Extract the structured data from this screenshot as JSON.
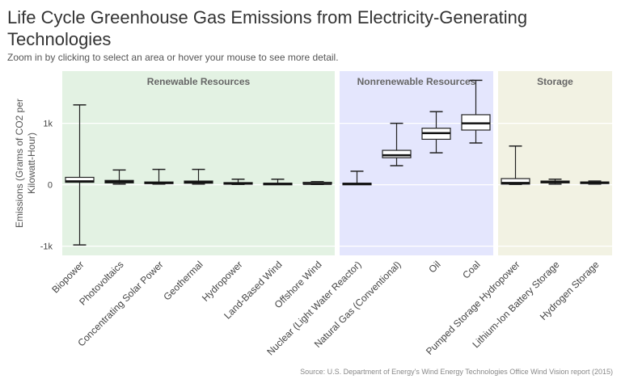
{
  "header": {
    "title": "Life Cycle Greenhouse Gas Emissions from Electricity-Generating Technologies",
    "subtitle": "Zoom in by clicking to select an area or hover your mouse to see more detail."
  },
  "source": "Source: U.S. Department of Energy's Wind Energy Technologies Office Wind Vision report (2015)",
  "chart_data": {
    "type": "box",
    "ylabel": "Emissions (Grams of CO2 per Kilowatt-Hour)",
    "xlabel": "",
    "ylim": [
      -1150,
      1850
    ],
    "yticks": [
      {
        "value": -1000,
        "label": "-1k"
      },
      {
        "value": 0,
        "label": "0"
      },
      {
        "value": 1000,
        "label": "1k"
      }
    ],
    "grid": true,
    "groups": [
      {
        "label": "Renewable Resources",
        "start": 0,
        "end": 6,
        "color": "#e3f2e3"
      },
      {
        "label": "Nonrenewable Resources",
        "start": 7,
        "end": 10,
        "color": "#e4e6fd"
      },
      {
        "label": "Storage",
        "start": 11,
        "end": 13,
        "color": "#f2f2e3"
      }
    ],
    "categories": [
      "Biopower",
      "Photovoltaics",
      "Concentrating Solar Power",
      "Geothermal",
      "Hydropower",
      "Land-Based Wind",
      "Offshore Wind",
      "Nuclear (Light Water Reactor)",
      "Natural Gas (Conventional)",
      "Oil",
      "Coal",
      "Pumped Storage Hydropower",
      "Lithium-Ion Battery Storage",
      "Hydrogen Storage"
    ],
    "boxes": [
      {
        "min": -980,
        "q1": 40,
        "median": 55,
        "q3": 120,
        "max": 1300
      },
      {
        "min": 10,
        "q1": 30,
        "median": 50,
        "q3": 70,
        "max": 240
      },
      {
        "min": 10,
        "q1": 25,
        "median": 30,
        "q3": 45,
        "max": 250
      },
      {
        "min": 10,
        "q1": 25,
        "median": 40,
        "q3": 60,
        "max": 250
      },
      {
        "min": 5,
        "q1": 10,
        "median": 20,
        "q3": 35,
        "max": 90
      },
      {
        "min": 5,
        "q1": 10,
        "median": 15,
        "q3": 25,
        "max": 90
      },
      {
        "min": 5,
        "q1": 10,
        "median": 15,
        "q3": 40,
        "max": 50
      },
      {
        "min": 5,
        "q1": 10,
        "median": 15,
        "q3": 25,
        "max": 220
      },
      {
        "min": 310,
        "q1": 440,
        "median": 480,
        "q3": 560,
        "max": 1000
      },
      {
        "min": 520,
        "q1": 740,
        "median": 840,
        "q3": 920,
        "max": 1190
      },
      {
        "min": 680,
        "q1": 890,
        "median": 1000,
        "q3": 1140,
        "max": 1700
      },
      {
        "min": 5,
        "q1": 10,
        "median": 30,
        "q3": 100,
        "max": 630
      },
      {
        "min": 10,
        "q1": 30,
        "median": 45,
        "q3": 60,
        "max": 90
      },
      {
        "min": 10,
        "q1": 25,
        "median": 35,
        "q3": 45,
        "max": 60
      }
    ]
  }
}
